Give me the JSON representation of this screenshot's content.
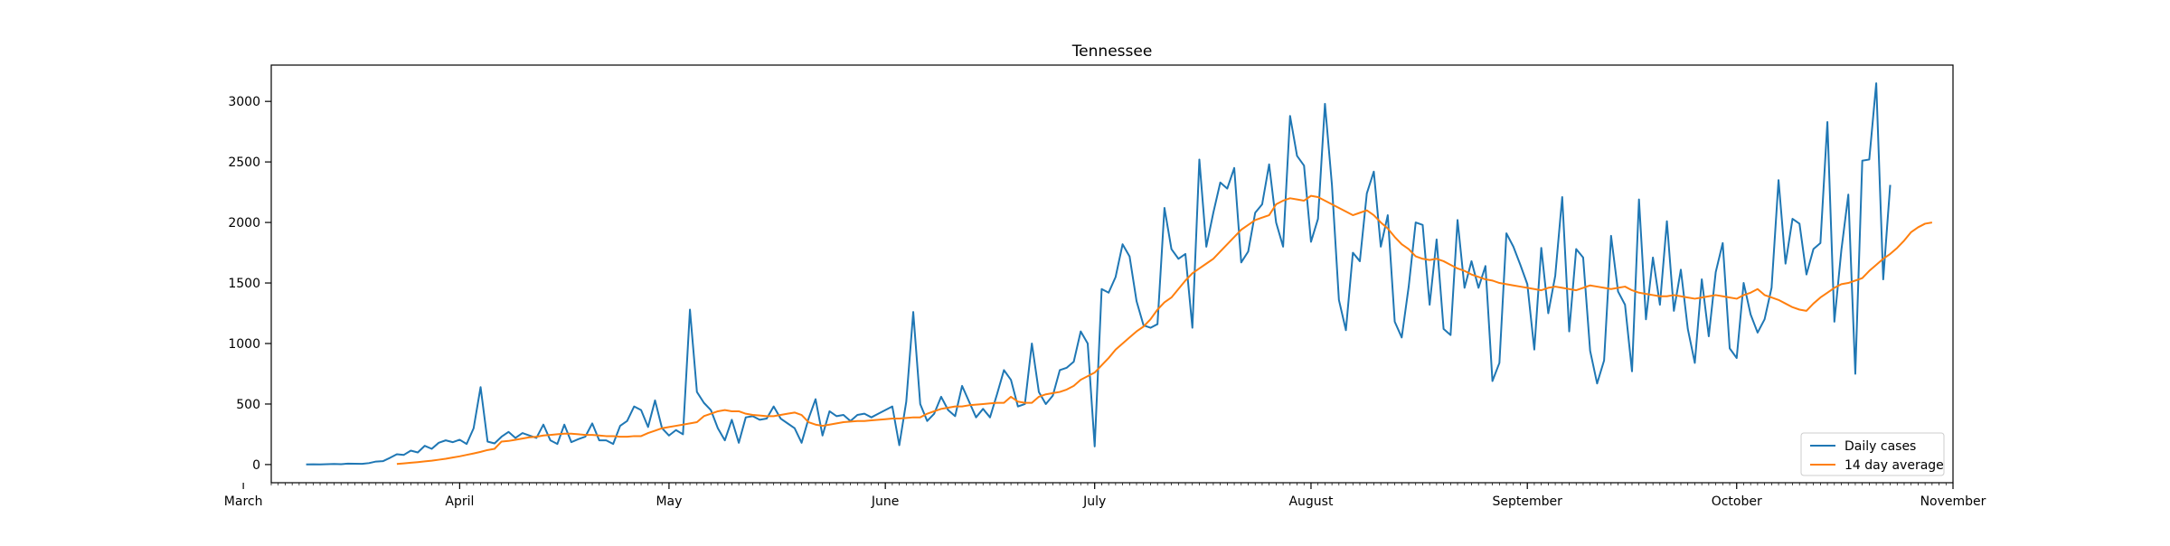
{
  "chart_data": {
    "type": "line",
    "title": "Tennessee",
    "xlabel": "",
    "ylabel": "",
    "x_start": "2020-03-10",
    "x_range": [
      "2020-03-05",
      "2020-11-01"
    ],
    "x_ticks": [
      {
        "label": "March",
        "date": "2020-03-01"
      },
      {
        "label": "April",
        "date": "2020-04-01"
      },
      {
        "label": "May",
        "date": "2020-05-01"
      },
      {
        "label": "June",
        "date": "2020-06-01"
      },
      {
        "label": "July",
        "date": "2020-07-01"
      },
      {
        "label": "August",
        "date": "2020-08-01"
      },
      {
        "label": "September",
        "date": "2020-09-01"
      },
      {
        "label": "October",
        "date": "2020-10-01"
      },
      {
        "label": "November",
        "date": "2020-11-01"
      }
    ],
    "ylim": [
      -150,
      3300
    ],
    "y_ticks": [
      0,
      500,
      1000,
      1500,
      2000,
      2500,
      3000
    ],
    "grid": false,
    "legend_position": "lower-right",
    "series": [
      {
        "name": "Daily cases",
        "color": "#1f77b4",
        "values": [
          1,
          2,
          1,
          3,
          5,
          3,
          8,
          7,
          6,
          12,
          25,
          28,
          55,
          85,
          80,
          115,
          100,
          155,
          130,
          180,
          200,
          185,
          205,
          170,
          300,
          640,
          190,
          175,
          230,
          270,
          220,
          260,
          240,
          220,
          330,
          200,
          170,
          330,
          185,
          210,
          230,
          340,
          200,
          200,
          170,
          320,
          360,
          480,
          450,
          310,
          530,
          300,
          240,
          285,
          250,
          1280,
          600,
          510,
          450,
          300,
          200,
          370,
          180,
          390,
          400,
          370,
          380,
          480,
          380,
          340,
          300,
          180,
          380,
          540,
          240,
          440,
          400,
          410,
          360,
          410,
          420,
          390,
          420,
          450,
          480,
          160,
          520,
          1260,
          500,
          360,
          420,
          560,
          450,
          400,
          650,
          520,
          390,
          460,
          390,
          580,
          780,
          700,
          480,
          500,
          1000,
          600,
          500,
          570,
          780,
          800,
          850,
          1100,
          1000,
          150,
          1450,
          1420,
          1550,
          1820,
          1720,
          1350,
          1150,
          1130,
          1160,
          2120,
          1780,
          1700,
          1740,
          1130,
          2520,
          1800,
          2080,
          2330,
          2280,
          2450,
          1670,
          1760,
          2080,
          2150,
          2480,
          2000,
          1800,
          2880,
          2550,
          2470,
          1840,
          2030,
          2980,
          2310,
          1360,
          1110,
          1750,
          1680,
          2240,
          2420,
          1800,
          2060,
          1180,
          1050,
          1470,
          2000,
          1980,
          1320,
          1860,
          1120,
          1070,
          2020,
          1460,
          1680,
          1460,
          1640,
          690,
          840,
          1910,
          1800,
          1650,
          1490,
          950,
          1790,
          1250,
          1560,
          2210,
          1100,
          1780,
          1710,
          940,
          670,
          860,
          1890,
          1430,
          1320,
          770,
          2190,
          1200,
          1710,
          1320,
          2010,
          1270,
          1610,
          1120,
          840,
          1530,
          1060,
          1590,
          1830,
          960,
          880,
          1500,
          1240,
          1090,
          1200,
          1460,
          2350,
          1660,
          2030,
          1990,
          1570,
          1780,
          1830,
          2830,
          1180,
          1770,
          2230,
          750,
          2510,
          2520,
          3150,
          1530,
          2310
        ]
      },
      {
        "name": "14 day average",
        "color": "#ff7f0e",
        "start_index": 13,
        "values": [
          5,
          10,
          15,
          20,
          26,
          32,
          40,
          48,
          58,
          68,
          80,
          92,
          105,
          120,
          130,
          190,
          195,
          205,
          215,
          225,
          230,
          240,
          245,
          250,
          255,
          255,
          250,
          245,
          245,
          240,
          235,
          235,
          230,
          230,
          235,
          235,
          260,
          280,
          300,
          310,
          320,
          330,
          340,
          350,
          400,
          420,
          440,
          450,
          440,
          440,
          420,
          410,
          405,
          400,
          400,
          410,
          420,
          430,
          410,
          350,
          330,
          320,
          330,
          340,
          350,
          355,
          360,
          360,
          365,
          370,
          375,
          380,
          380,
          385,
          390,
          390,
          420,
          440,
          460,
          470,
          480,
          480,
          490,
          495,
          500,
          505,
          510,
          510,
          560,
          520,
          510,
          510,
          560,
          580,
          590,
          600,
          620,
          650,
          700,
          730,
          760,
          820,
          880,
          950,
          1000,
          1050,
          1100,
          1140,
          1200,
          1280,
          1340,
          1380,
          1450,
          1520,
          1580,
          1620,
          1660,
          1700,
          1760,
          1820,
          1880,
          1940,
          1980,
          2020,
          2040,
          2060,
          2150,
          2180,
          2200,
          2190,
          2180,
          2220,
          2210,
          2180,
          2150,
          2120,
          2090,
          2060,
          2080,
          2100,
          2060,
          2000,
          1950,
          1880,
          1820,
          1780,
          1720,
          1700,
          1690,
          1700,
          1680,
          1650,
          1620,
          1600,
          1570,
          1550,
          1530,
          1520,
          1500,
          1490,
          1480,
          1470,
          1460,
          1450,
          1440,
          1460,
          1470,
          1460,
          1450,
          1440,
          1460,
          1480,
          1470,
          1460,
          1450,
          1460,
          1470,
          1440,
          1420,
          1410,
          1400,
          1390,
          1390,
          1400,
          1390,
          1380,
          1370,
          1380,
          1390,
          1400,
          1390,
          1380,
          1370,
          1400,
          1420,
          1450,
          1400,
          1380,
          1360,
          1330,
          1300,
          1280,
          1270,
          1330,
          1380,
          1420,
          1460,
          1490,
          1500,
          1520,
          1540,
          1600,
          1650,
          1700,
          1740,
          1790,
          1850,
          1920,
          1960,
          1990,
          2000
        ]
      }
    ]
  }
}
